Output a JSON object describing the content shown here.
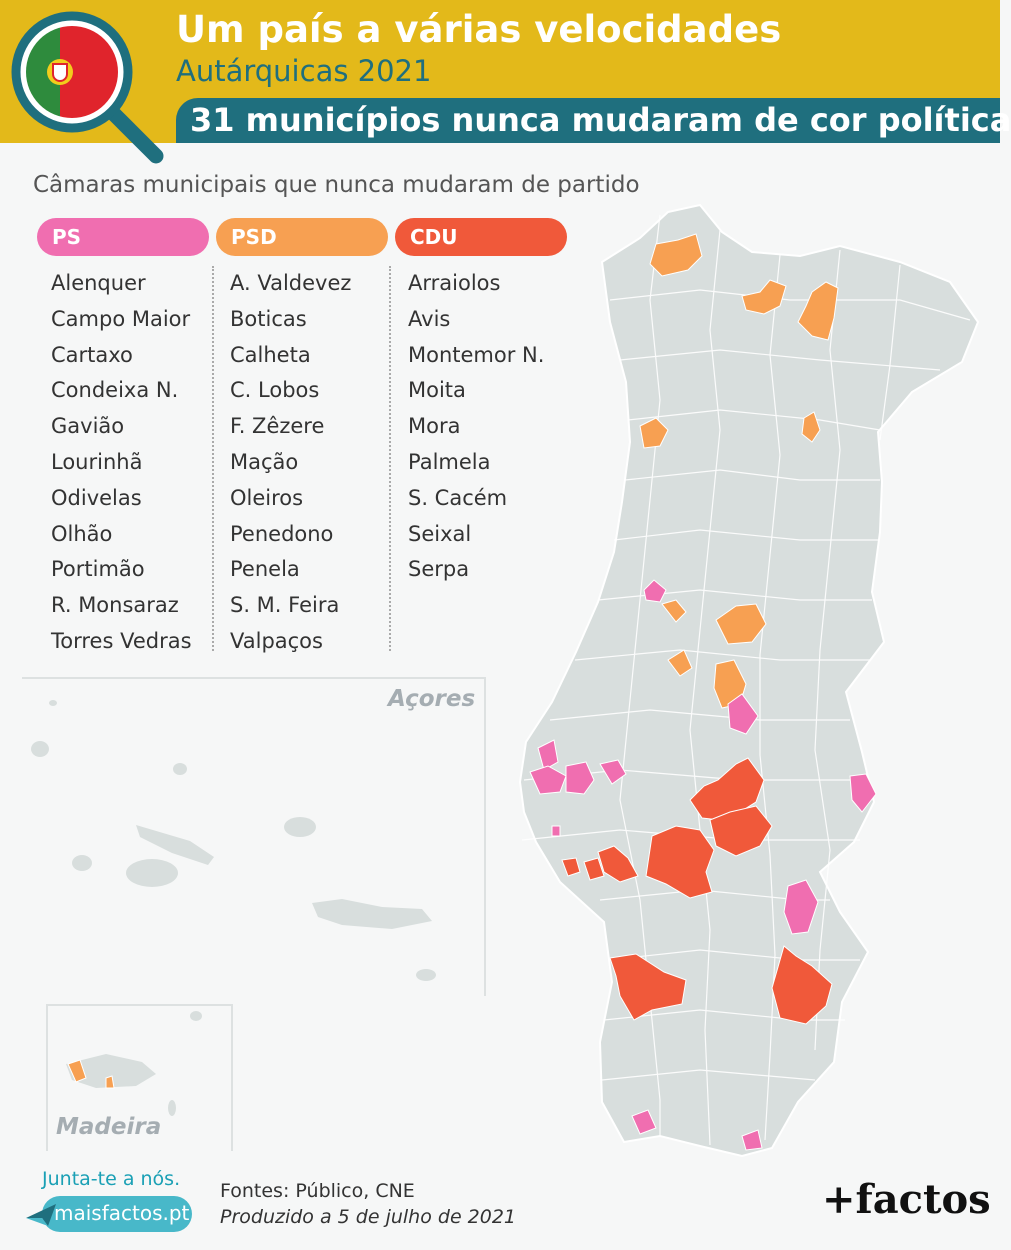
{
  "header": {
    "title": "Um país a várias velocidades",
    "subtitle": "Autárquicas 2021",
    "headline": "31 municípios nunca mudaram de cor política"
  },
  "intro": "Câmaras municipais que nunca mudaram de partido",
  "colors": {
    "ps": "#f06eb0",
    "psd": "#f7a052",
    "cdu": "#f0593a",
    "other": "#d8dedd",
    "banner": "#e3b91a",
    "accent": "#1f6f7e"
  },
  "parties": [
    {
      "label": "PS",
      "items": [
        "Alenquer",
        "Campo Maior",
        "Cartaxo",
        "Condeixa N.",
        "Gavião",
        "Lourinhã",
        "Odivelas",
        "Olhão",
        "Portimão",
        "R. Monsaraz",
        "Torres Vedras"
      ]
    },
    {
      "label": "PSD",
      "items": [
        "A. Valdevez",
        "Boticas",
        "Calheta",
        "C. Lobos",
        "F. Zêzere",
        "Mação",
        "Oleiros",
        "Penedono",
        "Penela",
        "S. M. Feira",
        "Valpaços"
      ]
    },
    {
      "label": "CDU",
      "items": [
        "Arraiolos",
        "Avis",
        "Montemor N.",
        "Moita",
        "Mora",
        "Palmela",
        "S. Cacém",
        "Seixal",
        "Serpa"
      ]
    }
  ],
  "map": {
    "azores_label": "Açores",
    "madeira_label": "Madeira"
  },
  "footer": {
    "join": "Junta-te a nós.",
    "site": "maisfactos.pt",
    "source": "Fontes: Público, CNE",
    "produced": "Produzido a 5 de julho de 2021",
    "brand": "+factos"
  }
}
